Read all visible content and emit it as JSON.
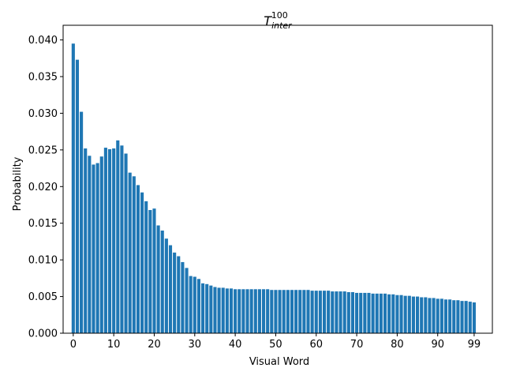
{
  "chart_data": {
    "type": "bar",
    "title": {
      "base": "T",
      "sub": "inter",
      "sup": "100"
    },
    "xlabel": "Visual Word",
    "ylabel": "Probability",
    "xlim": [
      -2.5,
      103.5
    ],
    "ylim": [
      0,
      0.042
    ],
    "xticks": [
      0,
      10,
      20,
      30,
      40,
      50,
      60,
      70,
      80,
      90,
      99
    ],
    "yticks": [
      "0.000",
      "0.005",
      "0.010",
      "0.015",
      "0.020",
      "0.025",
      "0.030",
      "0.035",
      "0.040"
    ],
    "bar_color": "#1f77b4",
    "grid": false,
    "legend": "none",
    "x": [
      0,
      1,
      2,
      3,
      4,
      5,
      6,
      7,
      8,
      9,
      10,
      11,
      12,
      13,
      14,
      15,
      16,
      17,
      18,
      19,
      20,
      21,
      22,
      23,
      24,
      25,
      26,
      27,
      28,
      29,
      30,
      31,
      32,
      33,
      34,
      35,
      36,
      37,
      38,
      39,
      40,
      41,
      42,
      43,
      44,
      45,
      46,
      47,
      48,
      49,
      50,
      51,
      52,
      53,
      54,
      55,
      56,
      57,
      58,
      59,
      60,
      61,
      62,
      63,
      64,
      65,
      66,
      67,
      68,
      69,
      70,
      71,
      72,
      73,
      74,
      75,
      76,
      77,
      78,
      79,
      80,
      81,
      82,
      83,
      84,
      85,
      86,
      87,
      88,
      89,
      90,
      91,
      92,
      93,
      94,
      95,
      96,
      97,
      98,
      99
    ],
    "values": [
      0.0395,
      0.0373,
      0.0302,
      0.0252,
      0.0242,
      0.023,
      0.0232,
      0.0241,
      0.0253,
      0.0251,
      0.0252,
      0.0263,
      0.0256,
      0.0245,
      0.0219,
      0.0214,
      0.0202,
      0.0192,
      0.018,
      0.0168,
      0.017,
      0.0147,
      0.014,
      0.0129,
      0.012,
      0.011,
      0.0105,
      0.0097,
      0.0089,
      0.0078,
      0.0077,
      0.0074,
      0.0068,
      0.0067,
      0.0065,
      0.0063,
      0.0062,
      0.0062,
      0.0061,
      0.0061,
      0.006,
      0.006,
      0.006,
      0.006,
      0.006,
      0.006,
      0.006,
      0.006,
      0.006,
      0.0059,
      0.0059,
      0.0059,
      0.0059,
      0.0059,
      0.0059,
      0.0059,
      0.0059,
      0.0059,
      0.0059,
      0.0058,
      0.0058,
      0.0058,
      0.0058,
      0.0058,
      0.0057,
      0.0057,
      0.0057,
      0.0057,
      0.0056,
      0.0056,
      0.0055,
      0.0055,
      0.0055,
      0.0055,
      0.0054,
      0.0054,
      0.0054,
      0.0054,
      0.0053,
      0.0053,
      0.0052,
      0.0052,
      0.0051,
      0.0051,
      0.005,
      0.005,
      0.0049,
      0.0049,
      0.0048,
      0.0048,
      0.0047,
      0.0047,
      0.0046,
      0.0046,
      0.0045,
      0.0045,
      0.0044,
      0.0044,
      0.0043,
      0.0042
    ]
  }
}
